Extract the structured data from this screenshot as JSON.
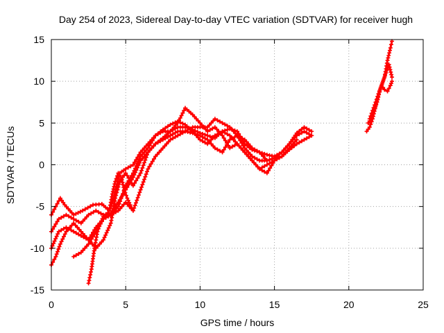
{
  "chart_data": {
    "type": "line",
    "title": "Day 254 of 2023, Sidereal Day-to-day VTEC variation (SDTVAR) for receiver hugh",
    "xlabel": "GPS time / hours",
    "ylabel": "SDTVAR / TECUs",
    "xlim": [
      0,
      25
    ],
    "ylim": [
      -15,
      15
    ],
    "xticks": [
      0,
      5,
      10,
      15,
      20,
      25
    ],
    "yticks": [
      -15,
      -10,
      -5,
      0,
      5,
      10,
      15
    ],
    "xtick_labels": [
      "0",
      "5",
      "10",
      "15",
      "20",
      "25"
    ],
    "ytick_labels": [
      "-15",
      "-10",
      "-5",
      "0",
      "5",
      "10",
      "15"
    ],
    "grid": true,
    "legend": "none",
    "color": "#ff0000",
    "series": [
      {
        "x": [
          0.0,
          0.3,
          0.6,
          0.9,
          1.5,
          2.1,
          2.8,
          3.4,
          3.9,
          4.2,
          4.6,
          5.0,
          5.5,
          6.0,
          6.5,
          7.0,
          7.5,
          8.0,
          8.5,
          9.0,
          9.5,
          10.0,
          10.5,
          11.0,
          11.5,
          12.0,
          12.5,
          13.0,
          13.5,
          14.0,
          14.5,
          15.0,
          15.5,
          16.0,
          16.5,
          17.0,
          17.5
        ],
        "y": [
          -6.0,
          -5.0,
          -4.0,
          -4.8,
          -6.0,
          -5.5,
          -4.8,
          -4.7,
          -5.5,
          -4.0,
          -1.0,
          -0.5,
          0.0,
          1.5,
          2.5,
          3.5,
          4.0,
          4.0,
          4.5,
          4.5,
          4.2,
          3.8,
          3.5,
          3.2,
          4.0,
          4.3,
          4.0,
          2.5,
          1.8,
          1.5,
          1.2,
          1.0,
          1.5,
          2.5,
          3.8,
          4.5,
          4.0
        ]
      },
      {
        "x": [
          0.0,
          0.5,
          1.0,
          1.5,
          2.0,
          2.5,
          3.0,
          3.5,
          4.0,
          4.5,
          5.0,
          5.5,
          6.0,
          6.5,
          7.0,
          7.5,
          8.0,
          8.5,
          9.0,
          9.5,
          10.0,
          10.5,
          11.0,
          11.5,
          12.0,
          12.5,
          13.0,
          13.5,
          14.0,
          14.5,
          15.0,
          15.5,
          16.0,
          16.5,
          17.0,
          17.5
        ],
        "y": [
          -8.0,
          -6.5,
          -6.0,
          -6.5,
          -7.0,
          -6.0,
          -5.5,
          -6.0,
          -5.8,
          -4.5,
          -3.0,
          -1.5,
          0.5,
          1.5,
          2.5,
          3.0,
          3.5,
          4.0,
          4.0,
          3.8,
          3.5,
          3.0,
          2.0,
          1.5,
          3.0,
          3.5,
          3.0,
          2.0,
          1.5,
          0.5,
          0.8,
          1.0,
          1.8,
          2.5,
          3.0,
          3.5
        ]
      },
      {
        "x": [
          0.0,
          0.5,
          1.0,
          1.5,
          2.0,
          2.5,
          3.0,
          3.5,
          4.0,
          4.5,
          5.0,
          5.5,
          6.0,
          6.5,
          7.0,
          7.5,
          8.0,
          8.5,
          9.0,
          9.5,
          10.0,
          10.5,
          11.0,
          11.5,
          12.0,
          12.5,
          13.0,
          13.5,
          14.0,
          14.5,
          15.0,
          15.5,
          16.0,
          16.5
        ],
        "y": [
          -10.0,
          -8.0,
          -7.5,
          -8.0,
          -8.5,
          -9.0,
          -7.5,
          -6.5,
          -6.0,
          -5.0,
          -2.5,
          -1.0,
          1.0,
          2.0,
          3.5,
          4.2,
          4.8,
          5.2,
          4.8,
          4.0,
          3.0,
          2.5,
          3.5,
          4.0,
          3.5,
          2.5,
          1.5,
          0.5,
          -0.5,
          0.0,
          0.5,
          1.0,
          2.0,
          3.0
        ]
      },
      {
        "x": [
          0.0,
          0.3,
          0.6,
          1.0,
          1.5,
          2.0,
          2.5,
          3.0,
          3.5,
          4.0,
          4.3,
          4.6,
          5.0,
          5.5,
          6.0,
          6.5,
          7.0,
          7.5,
          8.0,
          8.5,
          9.0,
          9.5,
          10.0,
          10.5,
          11.0,
          11.5,
          12.0,
          12.5,
          13.0,
          13.5,
          14.0,
          14.5,
          15.0
        ],
        "y": [
          -12.0,
          -11.0,
          -9.5,
          -8.0,
          -7.0,
          -8.0,
          -9.0,
          -10.0,
          -9.0,
          -7.0,
          -4.0,
          -2.0,
          -1.0,
          -2.5,
          -1.0,
          1.5,
          2.5,
          3.2,
          4.0,
          5.0,
          6.8,
          6.0,
          5.0,
          4.0,
          4.5,
          3.5,
          2.0,
          2.5,
          1.5,
          0.5,
          -0.5,
          -1.0,
          0.5
        ]
      },
      {
        "x": [
          1.5,
          2.0,
          2.5,
          3.0,
          3.5,
          4.0,
          4.5,
          5.0,
          5.5,
          6.0,
          6.5,
          7.0,
          7.5,
          8.0,
          8.5,
          9.0,
          9.5,
          10.0,
          10.5,
          11.0,
          11.5,
          12.0,
          12.5,
          13.0,
          13.5,
          14.0,
          14.5,
          15.0,
          15.5,
          16.0,
          16.5,
          17.0,
          17.5
        ],
        "y": [
          -11.0,
          -10.5,
          -9.5,
          -8.0,
          -6.5,
          -6.0,
          -5.5,
          -4.5,
          -5.5,
          -3.0,
          -0.5,
          1.0,
          2.0,
          3.0,
          3.5,
          4.0,
          4.5,
          4.5,
          4.5,
          5.5,
          5.0,
          4.5,
          3.5,
          2.0,
          1.0,
          0.5,
          0.5,
          0.8,
          1.5,
          2.5,
          3.5,
          4.0,
          3.5
        ]
      },
      {
        "x": [
          2.5,
          2.7,
          2.9,
          3.1,
          3.3,
          3.5,
          3.7,
          3.9,
          4.1,
          4.3,
          4.5,
          4.7,
          4.9,
          5.1,
          5.3,
          5.5
        ],
        "y": [
          -14.2,
          -12.5,
          -10.0,
          -8.0,
          -7.0,
          -6.2,
          -6.0,
          -5.5,
          -3.5,
          -2.0,
          -1.0,
          -1.5,
          -3.0,
          -4.0,
          -4.8,
          -5.5
        ]
      },
      {
        "x": [
          21.2,
          21.4,
          21.6,
          21.8,
          22.0,
          22.2,
          22.4,
          22.6,
          22.8,
          22.9
        ],
        "y": [
          4.0,
          4.5,
          5.5,
          7.0,
          8.5,
          9.5,
          10.5,
          12.5,
          14.0,
          14.8
        ]
      },
      {
        "x": [
          21.3,
          21.5,
          21.7,
          21.9,
          22.1,
          22.3,
          22.5,
          22.7,
          22.9
        ],
        "y": [
          5.0,
          5.5,
          6.5,
          7.5,
          9.0,
          10.0,
          11.0,
          12.0,
          10.5
        ]
      },
      {
        "x": [
          21.4,
          21.6,
          21.8,
          22.0,
          22.2,
          22.4,
          22.6,
          22.8,
          22.9
        ],
        "y": [
          5.5,
          6.5,
          7.5,
          8.5,
          9.5,
          9.0,
          8.8,
          9.5,
          10.0
        ]
      }
    ]
  }
}
